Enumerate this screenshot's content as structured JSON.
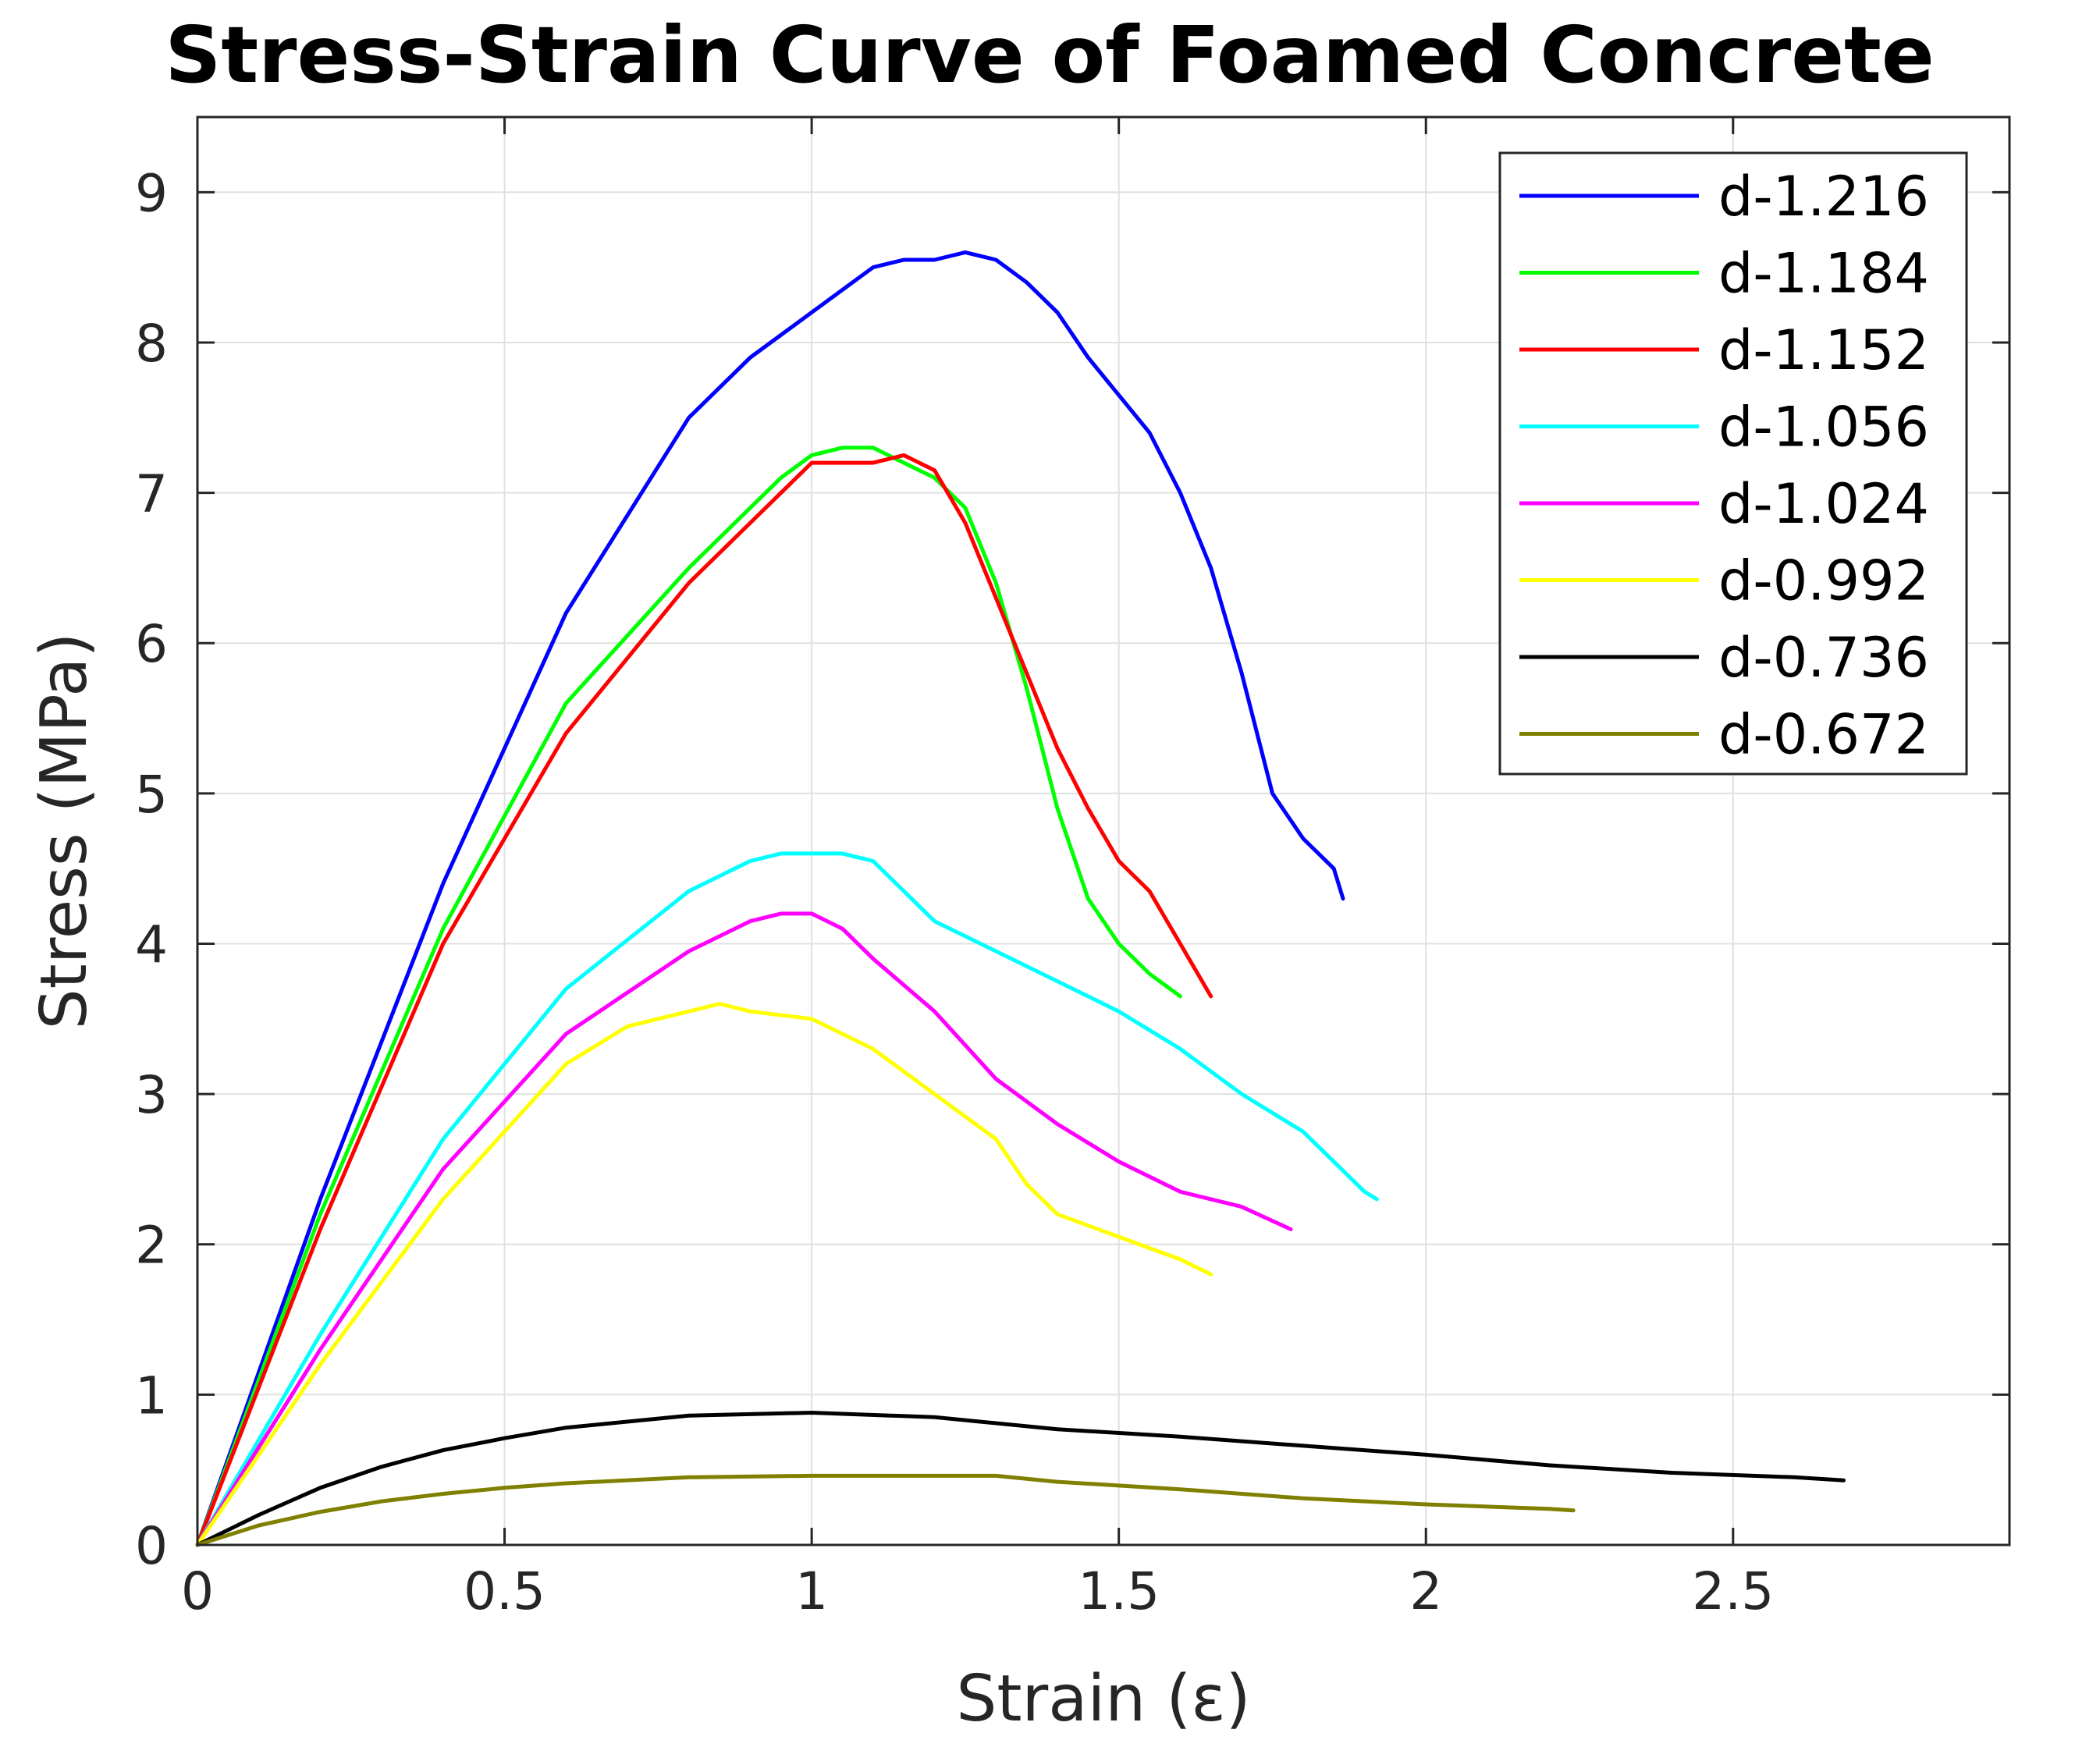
{
  "chart_data": {
    "type": "line",
    "title": "Stress-Strain Curve of Foamed Concrete",
    "xlabel": "Strain (ε)",
    "ylabel": "Stress (MPa)",
    "xlim": [
      0,
      2.95
    ],
    "ylim": [
      0,
      9.5
    ],
    "xticks": [
      0,
      0.5,
      1,
      1.5,
      2,
      2.5
    ],
    "xtick_labels": [
      "0",
      "0.5",
      "1",
      "1.5",
      "2",
      "2.5"
    ],
    "yticks": [
      0,
      1,
      2,
      3,
      4,
      5,
      6,
      7,
      8,
      9
    ],
    "ytick_labels": [
      "0",
      "1",
      "2",
      "3",
      "4",
      "5",
      "6",
      "7",
      "8",
      "9"
    ],
    "grid": true,
    "legend_position": "top-right",
    "series": [
      {
        "name": "d-1.216",
        "color": "#0000ff",
        "x": [
          0,
          0.2,
          0.4,
          0.6,
          0.8,
          0.9,
          1.0,
          1.1,
          1.15,
          1.2,
          1.25,
          1.3,
          1.35,
          1.4,
          1.45,
          1.5,
          1.55,
          1.6,
          1.65,
          1.7,
          1.75,
          1.8,
          1.85,
          1.865
        ],
        "y": [
          0,
          2.3,
          4.4,
          6.2,
          7.5,
          7.9,
          8.2,
          8.5,
          8.55,
          8.55,
          8.6,
          8.55,
          8.4,
          8.2,
          7.9,
          7.65,
          7.4,
          7.0,
          6.5,
          5.8,
          5.0,
          4.7,
          4.5,
          4.3
        ]
      },
      {
        "name": "d-1.184",
        "color": "#00ff00",
        "x": [
          0,
          0.2,
          0.4,
          0.6,
          0.8,
          0.9,
          0.95,
          1.0,
          1.05,
          1.1,
          1.15,
          1.2,
          1.25,
          1.3,
          1.35,
          1.4,
          1.45,
          1.5,
          1.55,
          1.6
        ],
        "y": [
          0,
          2.2,
          4.1,
          5.6,
          6.5,
          6.9,
          7.1,
          7.25,
          7.3,
          7.3,
          7.2,
          7.1,
          6.9,
          6.4,
          5.7,
          4.9,
          4.3,
          4.0,
          3.8,
          3.65
        ]
      },
      {
        "name": "d-1.152",
        "color": "#ff0000",
        "x": [
          0,
          0.2,
          0.4,
          0.6,
          0.8,
          0.9,
          0.95,
          1.0,
          1.05,
          1.1,
          1.15,
          1.2,
          1.25,
          1.3,
          1.35,
          1.4,
          1.45,
          1.5,
          1.55,
          1.6,
          1.65
        ],
        "y": [
          0,
          2.1,
          4.0,
          5.4,
          6.4,
          6.8,
          7.0,
          7.2,
          7.2,
          7.2,
          7.25,
          7.15,
          6.8,
          6.3,
          5.8,
          5.3,
          4.9,
          4.55,
          4.35,
          4.0,
          3.65
        ]
      },
      {
        "name": "d-1.056",
        "color": "#00ffff",
        "x": [
          0,
          0.2,
          0.4,
          0.6,
          0.8,
          0.9,
          0.95,
          1.0,
          1.05,
          1.1,
          1.2,
          1.3,
          1.4,
          1.5,
          1.6,
          1.7,
          1.8,
          1.85,
          1.9,
          1.92
        ],
        "y": [
          0,
          1.4,
          2.7,
          3.7,
          4.35,
          4.55,
          4.6,
          4.6,
          4.6,
          4.55,
          4.15,
          3.95,
          3.75,
          3.55,
          3.3,
          3.0,
          2.75,
          2.55,
          2.35,
          2.3
        ]
      },
      {
        "name": "d-1.024",
        "color": "#ff00ff",
        "x": [
          0,
          0.2,
          0.4,
          0.6,
          0.8,
          0.9,
          0.95,
          1.0,
          1.05,
          1.1,
          1.2,
          1.3,
          1.4,
          1.5,
          1.6,
          1.7,
          1.78
        ],
        "y": [
          0,
          1.3,
          2.5,
          3.4,
          3.95,
          4.15,
          4.2,
          4.2,
          4.1,
          3.9,
          3.55,
          3.1,
          2.8,
          2.55,
          2.35,
          2.25,
          2.1
        ]
      },
      {
        "name": "d-0.992",
        "color": "#ffff00",
        "x": [
          0,
          0.2,
          0.4,
          0.6,
          0.7,
          0.8,
          0.85,
          0.9,
          1.0,
          1.1,
          1.2,
          1.3,
          1.35,
          1.4,
          1.5,
          1.6,
          1.65
        ],
        "y": [
          0,
          1.2,
          2.3,
          3.2,
          3.45,
          3.55,
          3.6,
          3.55,
          3.5,
          3.3,
          3.0,
          2.7,
          2.4,
          2.2,
          2.05,
          1.9,
          1.8
        ]
      },
      {
        "name": "d-0.736",
        "color": "#000000",
        "x": [
          0,
          0.1,
          0.2,
          0.3,
          0.4,
          0.5,
          0.6,
          0.8,
          1.0,
          1.2,
          1.4,
          1.6,
          1.8,
          2.0,
          2.2,
          2.4,
          2.6,
          2.68
        ],
        "y": [
          0,
          0.2,
          0.38,
          0.52,
          0.63,
          0.71,
          0.78,
          0.86,
          0.88,
          0.85,
          0.77,
          0.72,
          0.66,
          0.6,
          0.53,
          0.48,
          0.45,
          0.43
        ]
      },
      {
        "name": "d-0.672",
        "color": "#808000",
        "x": [
          0,
          0.1,
          0.2,
          0.3,
          0.4,
          0.5,
          0.6,
          0.8,
          1.0,
          1.2,
          1.3,
          1.4,
          1.6,
          1.8,
          2.0,
          2.2,
          2.24
        ],
        "y": [
          0,
          0.13,
          0.22,
          0.29,
          0.34,
          0.38,
          0.41,
          0.45,
          0.46,
          0.46,
          0.46,
          0.42,
          0.37,
          0.31,
          0.27,
          0.24,
          0.23
        ]
      }
    ]
  }
}
